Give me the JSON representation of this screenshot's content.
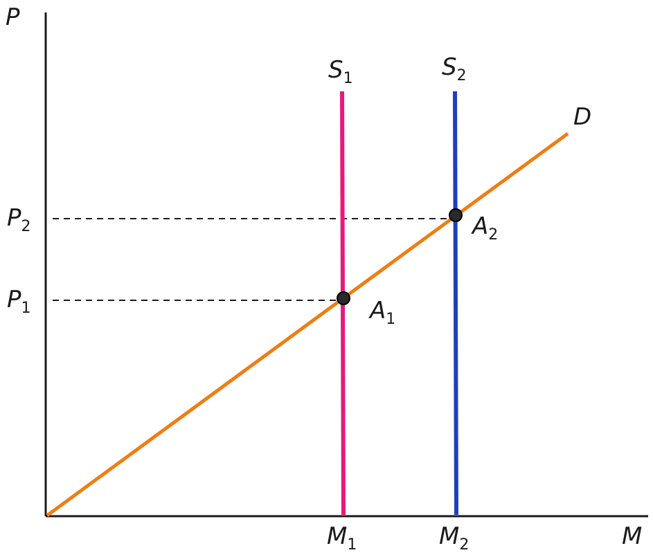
{
  "axes": {
    "y_label": "P",
    "x_label": "M"
  },
  "curves": {
    "supply_1": {
      "label": "S",
      "subscript": "1",
      "color": "#e8197a"
    },
    "supply_2": {
      "label": "S",
      "subscript": "2",
      "color": "#1d3fbf"
    },
    "demand": {
      "label": "D",
      "color": "#f07d12"
    }
  },
  "points": {
    "a1": {
      "label": "A",
      "subscript": "1"
    },
    "a2": {
      "label": "A",
      "subscript": "2"
    }
  },
  "y_ticks": {
    "p1": {
      "label": "P",
      "subscript": "1"
    },
    "p2": {
      "label": "P",
      "subscript": "2"
    }
  },
  "x_ticks": {
    "m1": {
      "label": "M",
      "subscript": "1"
    },
    "m2": {
      "label": "M",
      "subscript": "2"
    }
  },
  "colors": {
    "axis": "#1a1a1a",
    "guide": "#1a1a1a",
    "point": "#1a1a1a"
  }
}
